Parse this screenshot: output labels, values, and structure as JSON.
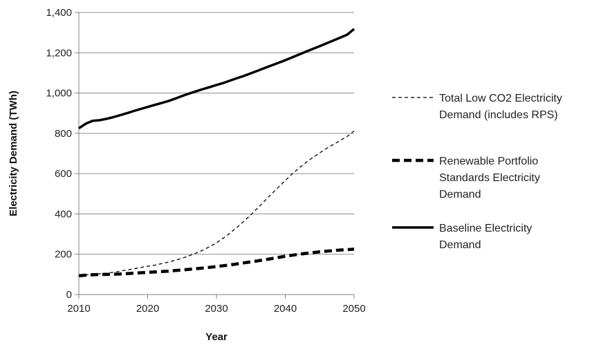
{
  "chart_data": {
    "type": "line",
    "title": "",
    "xlabel": "Year",
    "ylabel": "Electricity Demand (TWh)",
    "xlim": [
      2010,
      2050
    ],
    "ylim": [
      0,
      1400
    ],
    "x_ticks": [
      2010,
      2020,
      2030,
      2040,
      2050
    ],
    "x_tick_labels": [
      "2010",
      "2020",
      "2030",
      "2040",
      "2050"
    ],
    "y_ticks": [
      0,
      200,
      400,
      600,
      800,
      1000,
      1200,
      1400
    ],
    "y_tick_labels": [
      "0",
      "200",
      "400",
      "600",
      "800",
      "1,000",
      "1,200",
      "1,400"
    ],
    "grid": "horizontal",
    "legend_position": "right",
    "x": [
      2010,
      2011,
      2012,
      2013,
      2014,
      2015,
      2016,
      2017,
      2018,
      2019,
      2020,
      2021,
      2022,
      2023,
      2024,
      2025,
      2026,
      2027,
      2028,
      2029,
      2030,
      2031,
      2032,
      2033,
      2034,
      2035,
      2036,
      2037,
      2038,
      2039,
      2040,
      2041,
      2042,
      2043,
      2044,
      2045,
      2046,
      2047,
      2048,
      2049,
      2050
    ],
    "series": [
      {
        "name": "Total Low CO2 Electricity Demand (includes RPS)",
        "style": "thin-dashed",
        "values": [
          95,
          97,
          100,
          103,
          106,
          110,
          116,
          122,
          128,
          134,
          140,
          146,
          153,
          161,
          170,
          180,
          192,
          205,
          220,
          237,
          257,
          280,
          306,
          334,
          364,
          396,
          430,
          465,
          499,
          533,
          566,
          598,
          628,
          655,
          680,
          703,
          725,
          745,
          765,
          785,
          812
        ]
      },
      {
        "name": "Renewable Portfolio Standards Electricity Demand",
        "style": "thick-dashed",
        "values": [
          93,
          96,
          98,
          99,
          100,
          101,
          102,
          104,
          106,
          108,
          110,
          112,
          114,
          116,
          119,
          122,
          125,
          128,
          131,
          135,
          139,
          143,
          147,
          152,
          157,
          162,
          167,
          173,
          178,
          184,
          190,
          195,
          200,
          204,
          208,
          212,
          215,
          218,
          221,
          223,
          225
        ]
      },
      {
        "name": "Baseline Electricity Demand",
        "style": "solid",
        "values": [
          825,
          848,
          862,
          865,
          872,
          880,
          890,
          900,
          911,
          921,
          931,
          941,
          950,
          960,
          972,
          985,
          997,
          1008,
          1019,
          1029,
          1040,
          1050,
          1062,
          1074,
          1085,
          1098,
          1111,
          1124,
          1137,
          1150,
          1163,
          1177,
          1191,
          1205,
          1219,
          1233,
          1247,
          1261,
          1275,
          1290,
          1318
        ]
      }
    ],
    "legend": [
      {
        "lines": [
          "Total Low CO2 Electricity",
          "Demand (includes RPS)"
        ]
      },
      {
        "lines": [
          "Renewable Portfolio",
          "Standards Electricity",
          "Demand"
        ]
      },
      {
        "lines": [
          "Baseline Electricity",
          "Demand"
        ]
      }
    ]
  }
}
